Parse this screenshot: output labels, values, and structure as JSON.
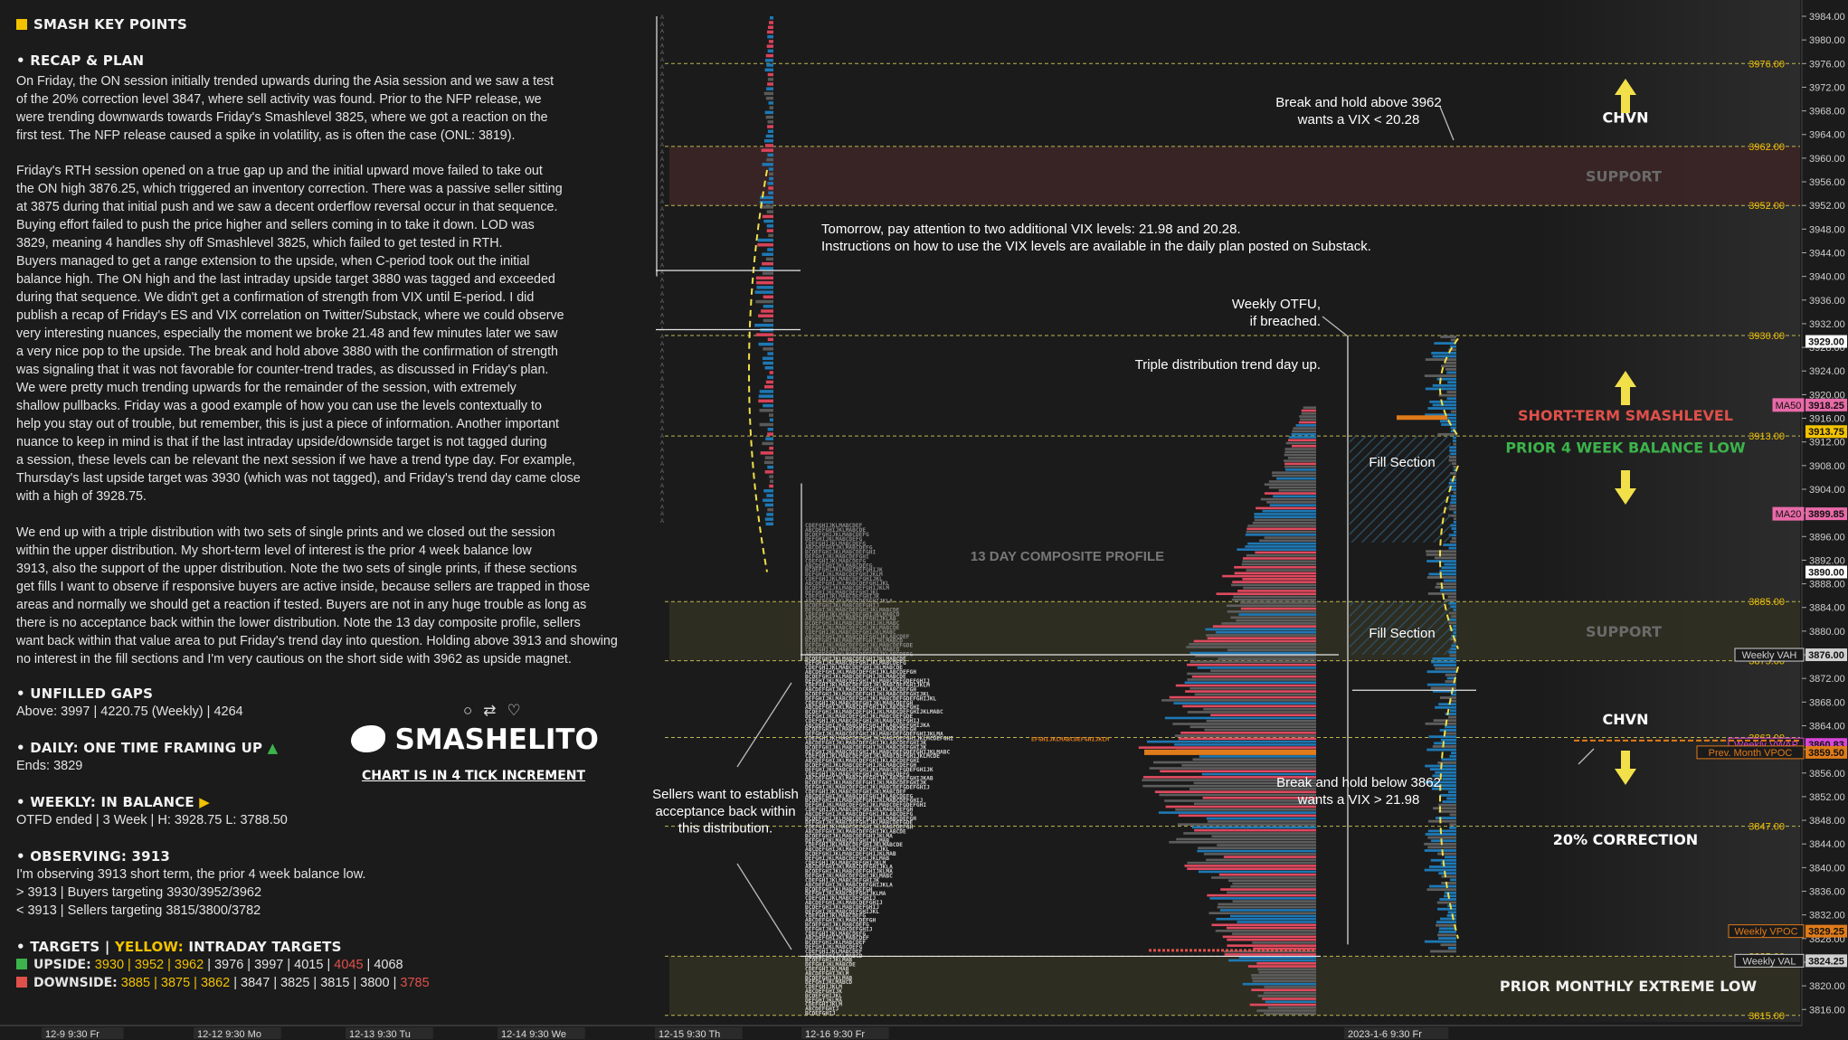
{
  "colors": {
    "background": "#1b1b1b",
    "yellow": "#f2c200",
    "red": "#e0504a",
    "green": "#3cb44b",
    "support": "#4a2a2a",
    "support2": "#3a3a2a",
    "blue": "#1e78b4",
    "gray": "#5a5a5a"
  },
  "left": {
    "title": "SMASH KEY POINTS",
    "recap_header": "RECAP & PLAN",
    "p1": "On Friday, the ON session initially trended upwards during the Asia session and we saw a test\nof the 20% correction level 3847, where sell activity was found. Prior to the NFP release, we\nwere trending downwards towards Friday's Smashlevel 3825, where we got a reaction on the\nfirst test. The NFP release caused a spike in volatility, as is often the case (ONL: 3819).",
    "p2": "Friday's RTH session opened on a true gap up and the initial upward move failed to take out\nthe ON high 3876.25, which triggered an inventory correction. There was a passive seller sitting\nat 3875 during that initial push and we saw a decent orderflow reversal occur in that sequence.\nBuying effort failed to push the price higher and sellers coming in to take it down. LOD was\n3829, meaning 4 handles shy off Smashlevel 3825, which failed to get tested in RTH.\nBuyers managed to get a range extension to the upside, when C-period took out the initial\nbalance high. The ON high and the last intraday upside target 3880 was tagged and exceeded\nduring that sequence. We didn't get a confirmation of strength from VIX until E-period. I did\npublish a recap of Friday's ES and VIX correlation on Twitter/Substack, where we could observe\nvery interesting nuances, especially the moment we broke 21.48 and few minutes later we saw\na very nice pop to the upside. The break and hold above 3880 with the confirmation of strength\nwas signaling that it was not favorable for counter-trend trades, as discussed in Friday's plan.\nWe were pretty much trending upwards for the remainder of the session, with extremely\nshallow pullbacks. Friday was a good example of how you can use the levels contextually to\nhelp you stay out of trouble, but remember, this is just a piece of information. Another important\nnuance to keep in mind is that if the last intraday upside/downside target is not tagged during\na session, these levels can be relevant the next session if we have a trend type day. For example,\nThursday's last upside target was 3930 (which was not tagged), and Friday's trend day came close\nwith a high of 3928.75.",
    "p3": "We end up with a triple distribution with two sets of single prints and we closed out the session\nwithin the upper distribution. My short-term level of interest is the prior 4 week balance low\n3913, also the support of the upper distribution. Note the two sets of single prints, if these sections\nget fills I want to observe if responsive buyers are active inside, because sellers are trapped in those\nareas and normally we should get a reaction if tested. Buyers are not in any huge trouble as long as\nthere is no acceptance back within the lower distribution. Note the 13 day composite profile, sellers\nwant back within that value area to put Friday's trend day into question. Holding above 3913 and showing\nno interest in the fill sections and I'm very cautious on the short side with 3962 as upside magnet.",
    "gaps_header": "UNFILLED GAPS",
    "gaps_text": "Above: 3997 | 4220.75 (Weekly) | 4264",
    "daily_header": "DAILY: ONE TIME FRAMING UP",
    "daily_text": "Ends: 3829",
    "weekly_header": "WEEKLY: IN BALANCE",
    "weekly_text": "OTFD ended | 3 Week | H: 3928.75 L: 3788.50",
    "obs_header": "OBSERVING: 3913",
    "obs_1": "I'm observing 3913 short term, the prior 4 week balance low.",
    "obs_2": "> 3913 | Buyers targeting 3930/3952/3962",
    "obs_3": "< 3913 | Sellers targeting 3815/3800/3782",
    "targets_header_a": "TARGETS |",
    "targets_header_b": "YELLOW:",
    "targets_header_c": "INTRADAY TARGETS",
    "upside_label": "UPSIDE:",
    "upside_yellow": "3930 | 3952 | 3962",
    "upside_rest": " | 3976 | 3997 | 4015 | ",
    "upside_red": "4045",
    "upside_end": " | 4068",
    "downside_label": "DOWNSIDE:",
    "downside_yellow": "3885 | 3875 | 3862",
    "downside_rest": " | 3847 | 3825 | 3815 | 3800 | ",
    "downside_red": "3785",
    "brand": "SMASHELITO",
    "tick_note": "CHART IS IN 4 TICK INCREMENT"
  },
  "chart_data": {
    "type": "market-profile",
    "ylim": [
      3814,
      3986
    ],
    "y_ticks": [
      3984,
      3980,
      3976,
      3972,
      3968,
      3964,
      3960,
      3956,
      3952,
      3948,
      3944,
      3940,
      3936,
      3932,
      3928,
      3924,
      3920,
      3916,
      3912,
      3908,
      3904,
      3900,
      3896,
      3892,
      3888,
      3884,
      3880,
      3876,
      3872,
      3868,
      3864,
      3860,
      3856,
      3852,
      3848,
      3844,
      3840,
      3836,
      3832,
      3828,
      3824,
      3820,
      3816
    ],
    "levels": [
      {
        "price": 3976.0,
        "label": "3976.00"
      },
      {
        "price": 3962.0,
        "label": "3962.00"
      },
      {
        "price": 3952.0,
        "label": "3952.00"
      },
      {
        "price": 3930.0,
        "label": "3930.00"
      },
      {
        "price": 3913.0,
        "label": "3913.00"
      },
      {
        "price": 3885.0,
        "label": "3885.00"
      },
      {
        "price": 3875.0,
        "label": "3875.00"
      },
      {
        "price": 3862.0,
        "label": "3862.00"
      },
      {
        "price": 3847.0,
        "label": "3847.00"
      },
      {
        "price": 3825.0,
        "label": "3825.00"
      },
      {
        "price": 3815.0,
        "label": "3815.00"
      }
    ],
    "price_tags": [
      {
        "price": 3929.0,
        "label": "3929.00",
        "text": "",
        "color": "#ffffff"
      },
      {
        "price": 3918.25,
        "label": "3918.25",
        "text": "MA50",
        "color": "#e86aa8"
      },
      {
        "price": 3913.75,
        "label": "3913.75",
        "text": "",
        "color": "#f2c200"
      },
      {
        "price": 3899.85,
        "label": "3899.85",
        "text": "MA20",
        "color": "#e86aa8"
      },
      {
        "price": 3890.0,
        "label": "3890.00",
        "text": "",
        "color": "#ffffff"
      },
      {
        "price": 3876.0,
        "label": "3876.00",
        "text": "Weekly VAH",
        "color": "#cfcfcf"
      },
      {
        "price": 3860.83,
        "label": "3860.83",
        "text": "Weekly VWAP",
        "color": "#d946d9"
      },
      {
        "price": 3859.5,
        "label": "3859.50",
        "text": "Prev. Month VPOC",
        "color": "#e07b1a"
      },
      {
        "price": 3829.25,
        "label": "3829.25",
        "text": "Weekly VPOC",
        "color": "#e07b1a"
      },
      {
        "price": 3824.25,
        "label": "3824.25",
        "text": "Weekly VAL",
        "color": "#cfcfcf"
      }
    ],
    "zones": [
      {
        "from": 3952,
        "to": 3962,
        "label": "SUPPORT",
        "kind": "red"
      },
      {
        "from": 3875,
        "to": 3885,
        "label": "SUPPORT",
        "kind": "olive"
      },
      {
        "from": 3815,
        "to": 3825,
        "label": "PRIOR MONTHLY EXTREME LOW",
        "kind": "olive"
      }
    ],
    "annotations": [
      {
        "text": "CHVN",
        "price": 3966
      },
      {
        "text": "SHORT-TERM SMASHLEVEL",
        "price": 3915
      },
      {
        "text": "PRIOR 4 WEEK BALANCE LOW",
        "price": 3910
      },
      {
        "text": "CHVN",
        "price": 3864
      },
      {
        "text": "20% CORRECTION",
        "price": 3844
      }
    ],
    "notes": {
      "break_above": "Break and hold above 3962\nwants a VIX < 20.28",
      "break_below": "Break and hold below 3862\nwants a VIX > 21.98",
      "tomorrow": "Tomorrow, pay attention to two additional VIX levels: 21.98 and 20.28.\nInstructions on how to use the VIX levels are available in the daily plan posted on Substack.",
      "weekly_otfu": "Weekly OTFU,\nif breached.",
      "triple": "Triple distribution trend day up.",
      "composite": "13 DAY COMPOSITE PROFILE",
      "fill1": "Fill Section",
      "fill2": "Fill Section",
      "sellers": "Sellers want to establish\nacceptance back within\nthis distribution."
    },
    "x_labels": [
      "12-9  9:30 Fr",
      "12-12  9:30 Mo",
      "12-13  9:30 Tu",
      "12-14  9:30 We",
      "12-15  9:30 Th",
      "12-16  9:30 Fr",
      "2023-1-6  9:30 Fr"
    ]
  }
}
